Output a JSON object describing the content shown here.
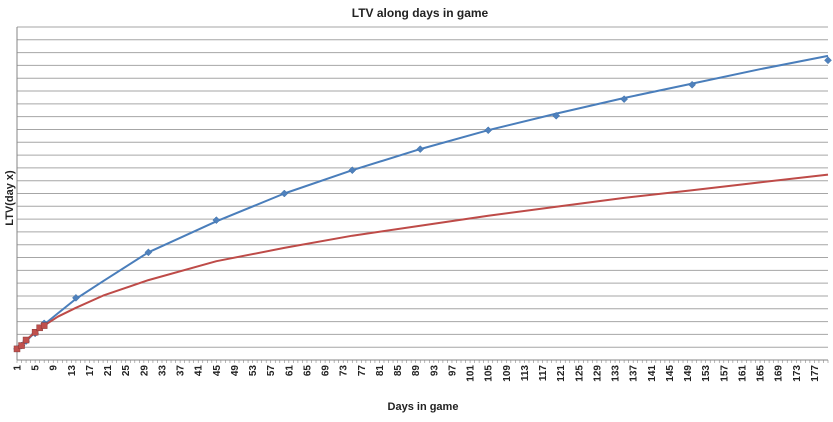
{
  "chart_data": {
    "type": "line",
    "title": "LTV along days in game",
    "xlabel": "Days in game",
    "ylabel": "LTV(day  x)",
    "x_range": [
      1,
      180
    ],
    "x_tick_labels": [
      "1",
      "5",
      "9",
      "13",
      "17",
      "21",
      "25",
      "29",
      "33",
      "37",
      "41",
      "45",
      "49",
      "53",
      "57",
      "61",
      "65",
      "69",
      "73",
      "77",
      "81",
      "85",
      "89",
      "93",
      "97",
      "101",
      "105",
      "109",
      "113",
      "117",
      "121",
      "125",
      "129",
      "133",
      "137",
      "141",
      "145",
      "149",
      "153",
      "157",
      "161",
      "165",
      "169",
      "173",
      "177"
    ],
    "grid": true,
    "y_gridlines": 26,
    "y_tick_labels_shown": false,
    "legend": "none",
    "series": [
      {
        "kind": "scatter",
        "color": "#4f81bd",
        "marker": "diamond",
        "points": [
          {
            "x": 1,
            "y": 1.0
          },
          {
            "x": 2,
            "y": 1.3
          },
          {
            "x": 3,
            "y": 1.7
          },
          {
            "x": 5,
            "y": 2.4
          },
          {
            "x": 7,
            "y": 3.3
          },
          {
            "x": 14,
            "y": 5.6
          },
          {
            "x": 30,
            "y": 9.7
          },
          {
            "x": 45,
            "y": 12.6
          },
          {
            "x": 60,
            "y": 15.0
          },
          {
            "x": 75,
            "y": 17.1
          },
          {
            "x": 90,
            "y": 19.0
          },
          {
            "x": 105,
            "y": 20.7
          },
          {
            "x": 120,
            "y": 22.0
          },
          {
            "x": 135,
            "y": 23.5
          },
          {
            "x": 150,
            "y": 24.8
          },
          {
            "x": 180,
            "y": 27.0
          }
        ]
      },
      {
        "kind": "trendline",
        "color": "#4a7ebb",
        "points": [
          {
            "x": 1,
            "y": 0.9
          },
          {
            "x": 3,
            "y": 1.7
          },
          {
            "x": 5,
            "y": 2.5
          },
          {
            "x": 7,
            "y": 3.2
          },
          {
            "x": 10,
            "y": 4.2
          },
          {
            "x": 14,
            "y": 5.5
          },
          {
            "x": 20,
            "y": 7.1
          },
          {
            "x": 30,
            "y": 9.7
          },
          {
            "x": 45,
            "y": 12.5
          },
          {
            "x": 60,
            "y": 15.0
          },
          {
            "x": 75,
            "y": 17.1
          },
          {
            "x": 90,
            "y": 19.0
          },
          {
            "x": 105,
            "y": 20.7
          },
          {
            "x": 120,
            "y": 22.2
          },
          {
            "x": 135,
            "y": 23.6
          },
          {
            "x": 150,
            "y": 24.9
          },
          {
            "x": 165,
            "y": 26.2
          },
          {
            "x": 180,
            "y": 27.4
          }
        ]
      },
      {
        "kind": "scatter",
        "color": "#c0504d",
        "marker": "square",
        "points": [
          {
            "x": 1,
            "y": 1.0
          },
          {
            "x": 2,
            "y": 1.3
          },
          {
            "x": 3,
            "y": 1.8
          },
          {
            "x": 5,
            "y": 2.5
          },
          {
            "x": 6,
            "y": 2.9
          },
          {
            "x": 7,
            "y": 3.1
          }
        ]
      },
      {
        "kind": "trendline",
        "color": "#be4b48",
        "points": [
          {
            "x": 1,
            "y": 1.0
          },
          {
            "x": 3,
            "y": 1.8
          },
          {
            "x": 5,
            "y": 2.5
          },
          {
            "x": 7,
            "y": 3.1
          },
          {
            "x": 10,
            "y": 3.9
          },
          {
            "x": 14,
            "y": 4.7
          },
          {
            "x": 20,
            "y": 5.8
          },
          {
            "x": 30,
            "y": 7.2
          },
          {
            "x": 45,
            "y": 8.9
          },
          {
            "x": 60,
            "y": 10.1
          },
          {
            "x": 75,
            "y": 11.2
          },
          {
            "x": 90,
            "y": 12.1
          },
          {
            "x": 105,
            "y": 13.0
          },
          {
            "x": 120,
            "y": 13.8
          },
          {
            "x": 135,
            "y": 14.6
          },
          {
            "x": 150,
            "y": 15.3
          },
          {
            "x": 165,
            "y": 16.0
          },
          {
            "x": 180,
            "y": 16.7
          }
        ]
      }
    ]
  }
}
